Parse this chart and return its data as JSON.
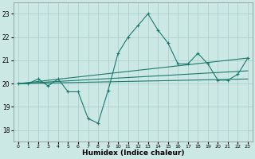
{
  "title": "",
  "xlabel": "Humidex (Indice chaleur)",
  "ylabel": "",
  "bg_color": "#cce8e5",
  "grid_color": "#aecfcc",
  "line_color": "#1a7a6e",
  "x_ticks": [
    0,
    1,
    2,
    3,
    4,
    5,
    6,
    7,
    8,
    9,
    10,
    11,
    12,
    13,
    14,
    15,
    16,
    17,
    18,
    19,
    20,
    21,
    22,
    23
  ],
  "y_ticks": [
    18,
    19,
    20,
    21,
    22,
    23
  ],
  "ylim": [
    17.5,
    23.5
  ],
  "xlim": [
    -0.5,
    23.5
  ],
  "line1_x": [
    0,
    1,
    2,
    3,
    4,
    5,
    6,
    7,
    8,
    9,
    10,
    11,
    12,
    13,
    14,
    15,
    16,
    17,
    18,
    19,
    20,
    21,
    22,
    23
  ],
  "line1_y": [
    20.0,
    20.0,
    20.2,
    19.9,
    20.2,
    19.65,
    19.65,
    18.5,
    18.3,
    19.7,
    21.3,
    22.0,
    22.5,
    23.0,
    22.3,
    21.75,
    20.85,
    20.85,
    21.3,
    20.85,
    20.15,
    20.15,
    20.4,
    21.1
  ],
  "line2_x": [
    0,
    23
  ],
  "line2_y": [
    20.0,
    21.1
  ],
  "line3_x": [
    0,
    23
  ],
  "line3_y": [
    20.0,
    20.55
  ],
  "line4_x": [
    0,
    23
  ],
  "line4_y": [
    20.0,
    20.2
  ]
}
